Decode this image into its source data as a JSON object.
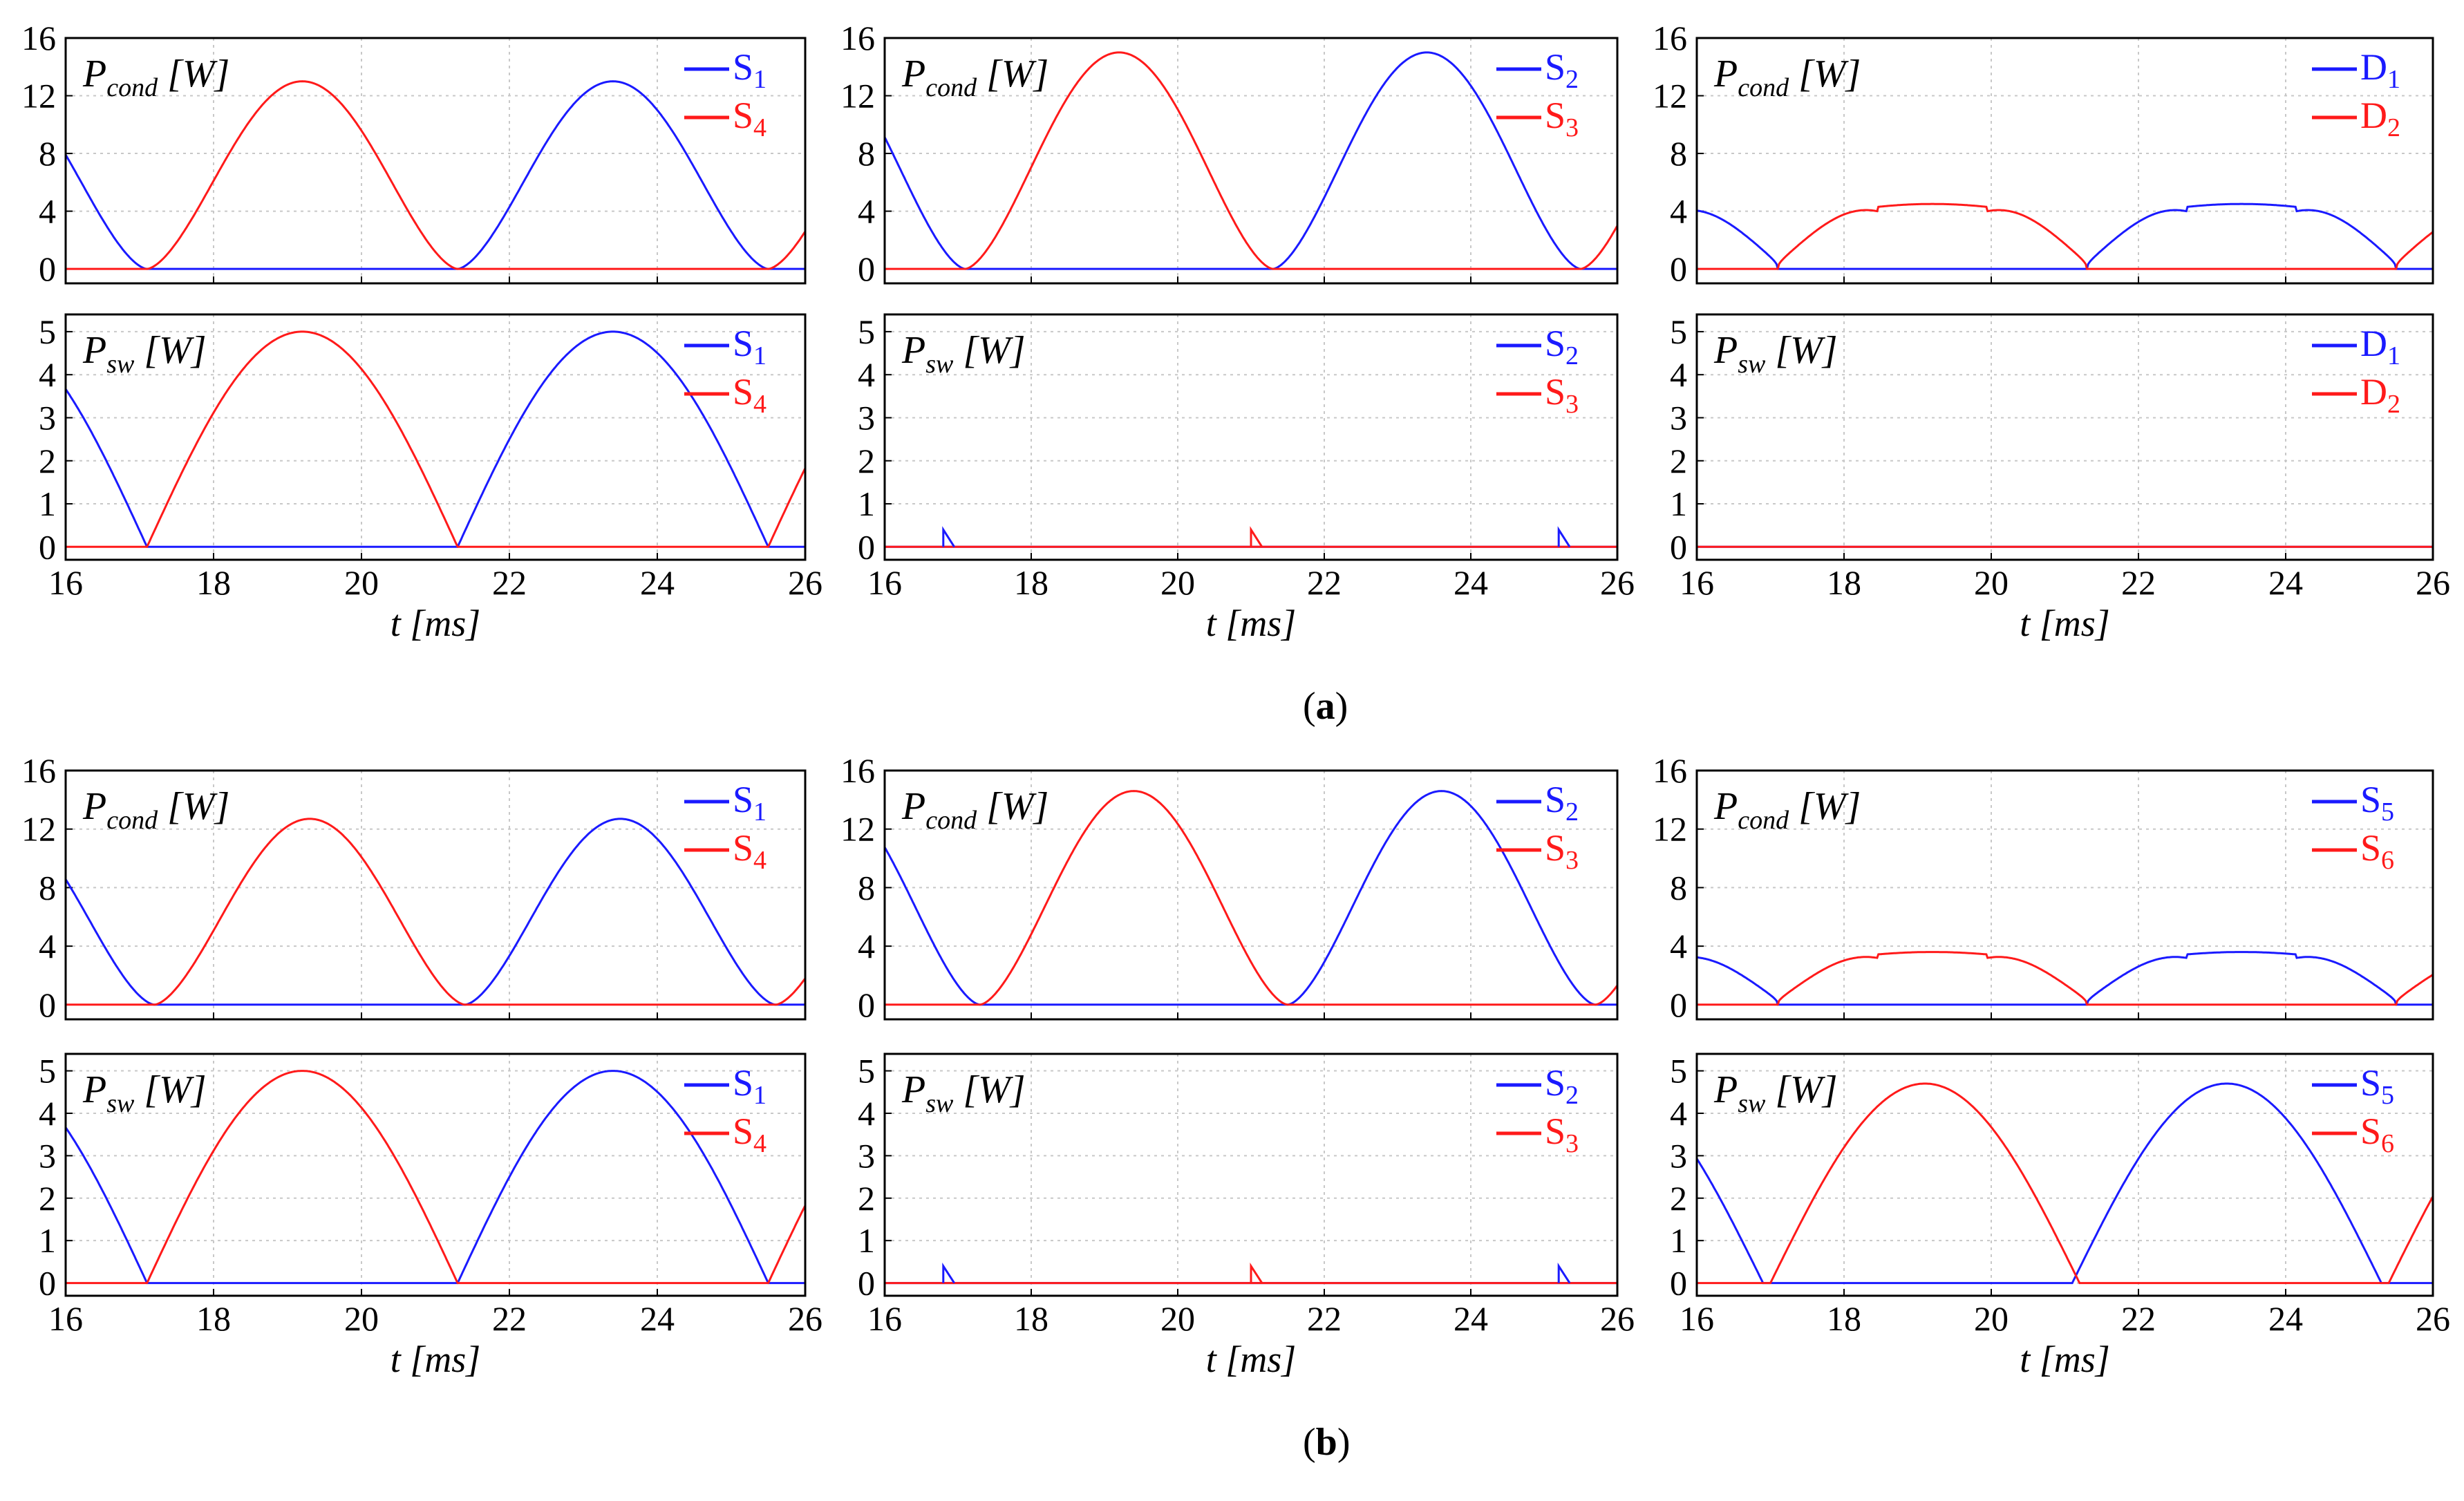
{
  "colors": {
    "blue": "#1a1aff",
    "red": "#ff1a1a",
    "grid": "#c8c8c8",
    "axis": "#000000"
  },
  "captions": [
    {
      "open": "(",
      "label": "a",
      "close": ")"
    },
    {
      "open": "(",
      "label": "b",
      "close": ")"
    }
  ],
  "chart_data": [
    {
      "id": "a-cond-S1S4",
      "group": "a",
      "row": 0,
      "col": 0,
      "type": "line",
      "ylabel_main": "P",
      "ylabel_sub": "cond",
      "ylabel_unit": " [W]",
      "yticks": [
        0,
        4,
        8,
        12,
        16
      ],
      "ylim": [
        -1,
        16
      ],
      "xlim": [
        16,
        26
      ],
      "xticks": [
        16,
        18,
        20,
        22,
        24,
        26
      ],
      "xlabel": "",
      "grid": true,
      "series": [
        {
          "name": "S",
          "sub": "1",
          "color": "blue",
          "kind": "cond",
          "amp": 13,
          "peak": 23.4,
          "noise": 0
        },
        {
          "name": "S",
          "sub": "4",
          "color": "red",
          "kind": "cond",
          "amp": 13,
          "peak": 19.2,
          "noise": 0
        }
      ]
    },
    {
      "id": "a-cond-S2S3",
      "group": "a",
      "row": 0,
      "col": 1,
      "type": "line",
      "ylabel_main": "P",
      "ylabel_sub": "cond",
      "ylabel_unit": " [W]",
      "yticks": [
        0,
        4,
        8,
        12,
        16
      ],
      "ylim": [
        -1,
        16
      ],
      "xlim": [
        16,
        26
      ],
      "xticks": [
        16,
        18,
        20,
        22,
        24,
        26
      ],
      "xlabel": "",
      "grid": true,
      "series": [
        {
          "name": "S",
          "sub": "2",
          "color": "blue",
          "kind": "cond",
          "amp": 15,
          "peak": 23.4,
          "noise": 0
        },
        {
          "name": "S",
          "sub": "3",
          "color": "red",
          "kind": "cond",
          "amp": 15,
          "peak": 19.2,
          "noise": 0
        }
      ]
    },
    {
      "id": "a-cond-D1D2",
      "group": "a",
      "row": 0,
      "col": 2,
      "type": "line",
      "ylabel_main": "P",
      "ylabel_sub": "cond",
      "ylabel_unit": " [W]",
      "yticks": [
        0,
        4,
        8,
        12,
        16
      ],
      "ylim": [
        -1,
        16
      ],
      "xlim": [
        16,
        26
      ],
      "xticks": [
        16,
        18,
        20,
        22,
        24,
        26
      ],
      "xlabel": "",
      "grid": true,
      "series": [
        {
          "name": "D",
          "sub": "1",
          "color": "blue",
          "kind": "diode",
          "amp": 4.5,
          "peak": 23.4,
          "noise": 0
        },
        {
          "name": "D",
          "sub": "2",
          "color": "red",
          "kind": "diode",
          "amp": 4.5,
          "peak": 19.2,
          "noise": 0
        }
      ]
    },
    {
      "id": "a-sw-S1S4",
      "group": "a",
      "row": 1,
      "col": 0,
      "type": "line",
      "ylabel_main": "P",
      "ylabel_sub": "sw",
      "ylabel_unit": " [W]",
      "yticks": [
        0,
        1,
        2,
        3,
        4,
        5
      ],
      "ylim": [
        -0.3,
        5.4
      ],
      "xlim": [
        16,
        26
      ],
      "xticks": [
        16,
        18,
        20,
        22,
        24,
        26
      ],
      "xlabel": "t [ms]",
      "grid": true,
      "series": [
        {
          "name": "S",
          "sub": "1",
          "color": "blue",
          "kind": "sw",
          "amp": 5,
          "peak": 23.4,
          "noise": 0
        },
        {
          "name": "S",
          "sub": "4",
          "color": "red",
          "kind": "sw",
          "amp": 5,
          "peak": 19.2,
          "noise": 0
        }
      ]
    },
    {
      "id": "a-sw-S2S3",
      "group": "a",
      "row": 1,
      "col": 1,
      "type": "line",
      "ylabel_main": "P",
      "ylabel_sub": "sw",
      "ylabel_unit": " [W]",
      "yticks": [
        0,
        1,
        2,
        3,
        4,
        5
      ],
      "ylim": [
        -0.3,
        5.4
      ],
      "xlim": [
        16,
        26
      ],
      "xticks": [
        16,
        18,
        20,
        22,
        24,
        26
      ],
      "xlabel": "t [ms]",
      "grid": true,
      "spikes": [
        {
          "t": 16.8,
          "h": 0.4,
          "color": "blue"
        },
        {
          "t": 21.0,
          "h": 0.4,
          "color": "red"
        },
        {
          "t": 25.2,
          "h": 0.4,
          "color": "blue"
        }
      ],
      "series": [
        {
          "name": "S",
          "sub": "2",
          "color": "blue",
          "kind": "zero",
          "amp": 0,
          "peak": 23.4,
          "noise": 0
        },
        {
          "name": "S",
          "sub": "3",
          "color": "red",
          "kind": "zero",
          "amp": 0,
          "peak": 19.2,
          "noise": 0
        }
      ]
    },
    {
      "id": "a-sw-D1D2",
      "group": "a",
      "row": 1,
      "col": 2,
      "type": "line",
      "ylabel_main": "P",
      "ylabel_sub": "sw",
      "ylabel_unit": " [W]",
      "yticks": [
        0,
        1,
        2,
        3,
        4,
        5
      ],
      "ylim": [
        -0.3,
        5.4
      ],
      "xlim": [
        16,
        26
      ],
      "xticks": [
        16,
        18,
        20,
        22,
        24,
        26
      ],
      "xlabel": "t [ms]",
      "grid": true,
      "series": [
        {
          "name": "D",
          "sub": "1",
          "color": "blue",
          "kind": "zero",
          "amp": 0,
          "peak": 23.4,
          "noise": 0
        },
        {
          "name": "D",
          "sub": "2",
          "color": "red",
          "kind": "zero",
          "amp": 0,
          "peak": 19.2,
          "noise": 0
        }
      ]
    },
    {
      "id": "b-cond-S1S4",
      "group": "b",
      "row": 0,
      "col": 0,
      "type": "line",
      "ylabel_main": "P",
      "ylabel_sub": "cond",
      "ylabel_unit": " [W]",
      "yticks": [
        0,
        4,
        8,
        12,
        16
      ],
      "ylim": [
        -1,
        16
      ],
      "xlim": [
        16,
        26
      ],
      "xticks": [
        16,
        18,
        20,
        22,
        24,
        26
      ],
      "xlabel": "",
      "grid": true,
      "series": [
        {
          "name": "S",
          "sub": "1",
          "color": "blue",
          "kind": "cond",
          "amp": 12.7,
          "peak": 23.5,
          "noise": 0
        },
        {
          "name": "S",
          "sub": "4",
          "color": "red",
          "kind": "cond",
          "amp": 12.7,
          "peak": 19.3,
          "noise": 0
        }
      ]
    },
    {
      "id": "b-cond-S2S3",
      "group": "b",
      "row": 0,
      "col": 1,
      "type": "line",
      "ylabel_main": "P",
      "ylabel_sub": "cond",
      "ylabel_unit": " [W]",
      "yticks": [
        0,
        4,
        8,
        12,
        16
      ],
      "ylim": [
        -1,
        16
      ],
      "xlim": [
        16,
        26
      ],
      "xticks": [
        16,
        18,
        20,
        22,
        24,
        26
      ],
      "xlabel": "",
      "grid": true,
      "series": [
        {
          "name": "S",
          "sub": "2",
          "color": "blue",
          "kind": "cond",
          "amp": 14.6,
          "peak": 23.6,
          "noise": 0
        },
        {
          "name": "S",
          "sub": "3",
          "color": "red",
          "kind": "cond",
          "amp": 14.6,
          "peak": 19.4,
          "noise": 0
        }
      ]
    },
    {
      "id": "b-cond-S5S6",
      "group": "b",
      "row": 0,
      "col": 2,
      "type": "line",
      "ylabel_main": "P",
      "ylabel_sub": "cond",
      "ylabel_unit": " [W]",
      "yticks": [
        0,
        4,
        8,
        12,
        16
      ],
      "ylim": [
        -1,
        16
      ],
      "xlim": [
        16,
        26
      ],
      "xticks": [
        16,
        18,
        20,
        22,
        24,
        26
      ],
      "xlabel": "",
      "grid": true,
      "series": [
        {
          "name": "S",
          "sub": "5",
          "color": "blue",
          "kind": "diode",
          "amp": 3.6,
          "peak": 23.4,
          "noise": 0
        },
        {
          "name": "S",
          "sub": "6",
          "color": "red",
          "kind": "diode",
          "amp": 3.6,
          "peak": 19.2,
          "noise": 0
        }
      ]
    },
    {
      "id": "b-sw-S1S4",
      "group": "b",
      "row": 1,
      "col": 0,
      "type": "line",
      "ylabel_main": "P",
      "ylabel_sub": "sw",
      "ylabel_unit": " [W]",
      "yticks": [
        0,
        1,
        2,
        3,
        4,
        5
      ],
      "ylim": [
        -0.3,
        5.4
      ],
      "xlim": [
        16,
        26
      ],
      "xticks": [
        16,
        18,
        20,
        22,
        24,
        26
      ],
      "xlabel": "t [ms]",
      "grid": true,
      "series": [
        {
          "name": "S",
          "sub": "1",
          "color": "blue",
          "kind": "sw",
          "amp": 5,
          "peak": 23.4,
          "noise": 0
        },
        {
          "name": "S",
          "sub": "4",
          "color": "red",
          "kind": "sw",
          "amp": 5,
          "peak": 19.2,
          "noise": 0
        }
      ]
    },
    {
      "id": "b-sw-S2S3",
      "group": "b",
      "row": 1,
      "col": 1,
      "type": "line",
      "ylabel_main": "P",
      "ylabel_sub": "sw",
      "ylabel_unit": " [W]",
      "yticks": [
        0,
        1,
        2,
        3,
        4,
        5
      ],
      "ylim": [
        -0.3,
        5.4
      ],
      "xlim": [
        16,
        26
      ],
      "xticks": [
        16,
        18,
        20,
        22,
        24,
        26
      ],
      "xlabel": "t [ms]",
      "grid": true,
      "spikes": [
        {
          "t": 16.8,
          "h": 0.4,
          "color": "blue"
        },
        {
          "t": 21.0,
          "h": 0.4,
          "color": "red"
        },
        {
          "t": 25.2,
          "h": 0.4,
          "color": "blue"
        }
      ],
      "series": [
        {
          "name": "S",
          "sub": "2",
          "color": "blue",
          "kind": "zero",
          "amp": 0,
          "peak": 23.4,
          "noise": 0
        },
        {
          "name": "S",
          "sub": "3",
          "color": "red",
          "kind": "zero",
          "amp": 0,
          "peak": 19.2,
          "noise": 0
        }
      ]
    },
    {
      "id": "b-sw-S5S6",
      "group": "b",
      "row": 1,
      "col": 2,
      "type": "line",
      "ylabel_main": "P",
      "ylabel_sub": "sw",
      "ylabel_unit": " [W]",
      "yticks": [
        0,
        1,
        2,
        3,
        4,
        5
      ],
      "ylim": [
        -0.3,
        5.4
      ],
      "xlim": [
        16,
        26
      ],
      "xticks": [
        16,
        18,
        20,
        22,
        24,
        26
      ],
      "xlabel": "t [ms]",
      "grid": true,
      "series": [
        {
          "name": "S",
          "sub": "5",
          "color": "blue",
          "kind": "sw",
          "amp": 4.7,
          "peak": 23.2,
          "noise": 0
        },
        {
          "name": "S",
          "sub": "6",
          "color": "red",
          "kind": "sw",
          "amp": 4.7,
          "peak": 19.1,
          "noise": 0
        }
      ]
    }
  ]
}
